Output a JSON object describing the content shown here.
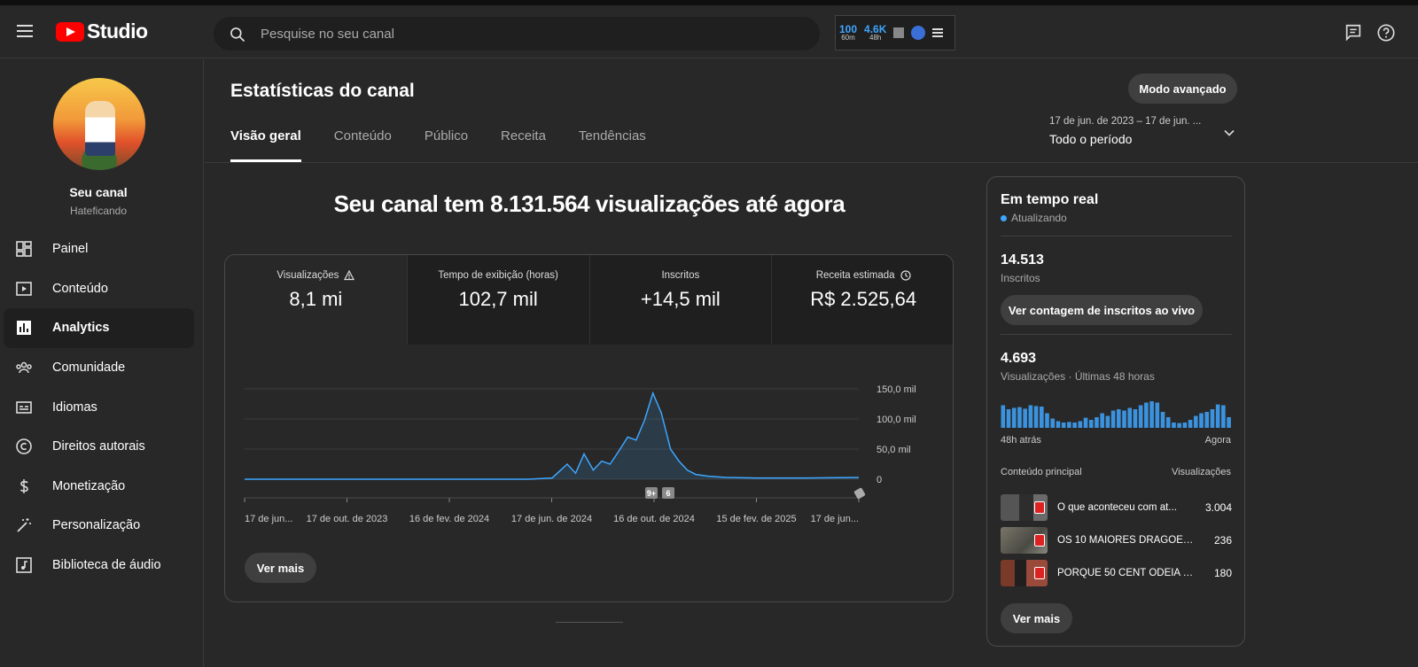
{
  "header": {
    "logo_text": "Studio",
    "search_placeholder": "Pesquise no seu canal",
    "extension": {
      "stat1_value": "100",
      "stat1_label": "60m",
      "stat2_value": "4.6K",
      "stat2_label": "48h"
    },
    "icons": [
      "menu-icon",
      "youtube-logo",
      "search-icon",
      "feedback-icon",
      "help-icon"
    ]
  },
  "sidebar": {
    "channel_name": "Seu canal",
    "channel_handle": "Hateficando",
    "items": [
      {
        "label": "Painel",
        "icon": "dashboard-icon",
        "active": false
      },
      {
        "label": "Conteúdo",
        "icon": "content-icon",
        "active": false
      },
      {
        "label": "Analytics",
        "icon": "analytics-icon",
        "active": true
      },
      {
        "label": "Comunidade",
        "icon": "community-icon",
        "active": false
      },
      {
        "label": "Idiomas",
        "icon": "subtitles-icon",
        "active": false
      },
      {
        "label": "Direitos autorais",
        "icon": "copyright-icon",
        "active": false
      },
      {
        "label": "Monetização",
        "icon": "dollar-icon",
        "active": false
      },
      {
        "label": "Personalização",
        "icon": "magic-wand-icon",
        "active": false
      },
      {
        "label": "Biblioteca de áudio",
        "icon": "audio-library-icon",
        "active": false
      }
    ]
  },
  "main": {
    "title": "Estatísticas do canal",
    "advanced_button": "Modo avançado",
    "tabs": [
      {
        "label": "Visão geral",
        "active": true
      },
      {
        "label": "Conteúdo",
        "active": false
      },
      {
        "label": "Público",
        "active": false
      },
      {
        "label": "Receita",
        "active": false
      },
      {
        "label": "Tendências",
        "active": false
      }
    ],
    "date_range": "17 de jun. de 2023 – 17 de jun. ...",
    "period": "Todo o período",
    "headline": "Seu canal tem 8.131.564 visualizações até agora",
    "metrics": [
      {
        "label": "Visualizações",
        "value": "8,1 mi",
        "icon": "warning-icon"
      },
      {
        "label": "Tempo de exibição (horas)",
        "value": "102,7 mil",
        "icon": ""
      },
      {
        "label": "Inscritos",
        "value": "+14,5 mil",
        "icon": ""
      },
      {
        "label": "Receita estimada",
        "value": "R$ 2.525,64",
        "icon": "clock-icon"
      }
    ],
    "see_more": "Ver mais"
  },
  "chart_data": {
    "type": "area",
    "series_color": "#3ea6ff",
    "ylim": [
      0,
      150000
    ],
    "y_ticks": [
      "150,0 mil",
      "100,0 mil",
      "50,0 mil",
      "0"
    ],
    "x_ticks": [
      "17 de jun...",
      "17 de out. de 2023",
      "16 de fev. de 2024",
      "17 de jun. de 2024",
      "16 de out. de 2024",
      "15 de fev. de 2025",
      "17 de jun..."
    ],
    "markers": [
      "9+",
      "6"
    ],
    "x": [
      "2023-06-17",
      "2023-10-17",
      "2024-02-16",
      "2024-05-20",
      "2024-06-17",
      "2024-07-05",
      "2024-07-15",
      "2024-07-25",
      "2024-08-05",
      "2024-08-15",
      "2024-08-25",
      "2024-09-05",
      "2024-09-15",
      "2024-09-25",
      "2024-10-05",
      "2024-10-15",
      "2024-10-25",
      "2024-11-05",
      "2024-11-15",
      "2024-11-25",
      "2024-12-05",
      "2024-12-20",
      "2025-01-10",
      "2025-02-15",
      "2025-04-15",
      "2025-06-17"
    ],
    "y": [
      0,
      0,
      0,
      0,
      2000,
      25000,
      10000,
      42000,
      15000,
      30000,
      25000,
      48000,
      70000,
      65000,
      98000,
      143000,
      110000,
      50000,
      30000,
      15000,
      8000,
      5000,
      3000,
      2000,
      2000,
      3000
    ]
  },
  "realtime": {
    "title": "Em tempo real",
    "status": "Atualizando",
    "subscribers_value": "14.513",
    "subscribers_label": "Inscritos",
    "live_button": "Ver contagem de inscritos ao vivo",
    "views_value": "4.693",
    "views_label": "Visualizações · Últimas 48 horas",
    "bars": [
      0.85,
      0.7,
      0.75,
      0.78,
      0.72,
      0.85,
      0.82,
      0.8,
      0.55,
      0.35,
      0.25,
      0.2,
      0.22,
      0.2,
      0.25,
      0.38,
      0.3,
      0.4,
      0.55,
      0.45,
      0.65,
      0.7,
      0.65,
      0.75,
      0.7,
      0.85,
      0.95,
      1.0,
      0.95,
      0.6,
      0.4,
      0.2,
      0.18,
      0.2,
      0.3,
      0.45,
      0.55,
      0.6,
      0.7,
      0.88,
      0.85,
      0.4
    ],
    "axis_left": "48h atrás",
    "axis_right": "Agora",
    "content_header": "Conteúdo principal",
    "views_header": "Visualizações",
    "top_content": [
      {
        "title": "O que aconteceu com at...",
        "views": "3.004"
      },
      {
        "title": "OS 10 MAIORES DRAGÕES...",
        "views": "236"
      },
      {
        "title": "PORQUE 50 CENT ODEIA O...",
        "views": "180"
      }
    ],
    "see_more": "Ver mais"
  }
}
